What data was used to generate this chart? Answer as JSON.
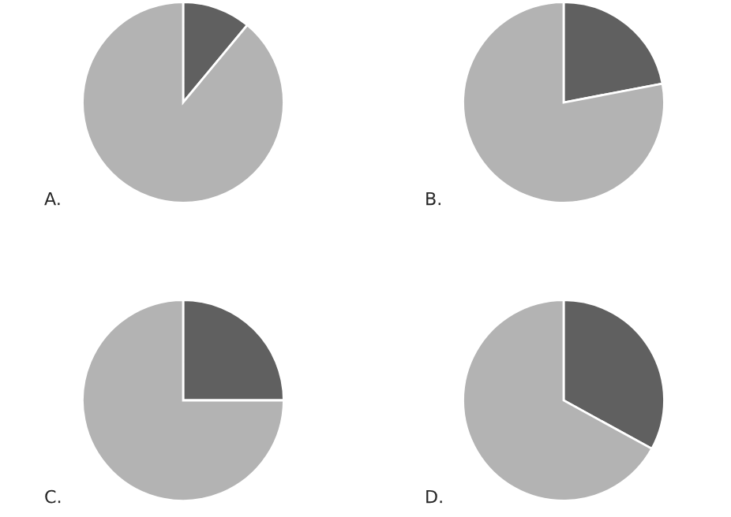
{
  "chart_data": [
    {
      "type": "pie",
      "title": "A.",
      "categories": [
        null,
        null
      ],
      "values": [
        11,
        89
      ],
      "colors": [
        "#606060",
        "#b3b3b3"
      ]
    },
    {
      "type": "pie",
      "title": "B.",
      "categories": [
        null,
        null
      ],
      "values": [
        22,
        78
      ],
      "colors": [
        "#606060",
        "#b3b3b3"
      ]
    },
    {
      "type": "pie",
      "title": "C.",
      "categories": [
        null,
        null
      ],
      "values": [
        25,
        75
      ],
      "colors": [
        "#606060",
        "#b3b3b3"
      ]
    },
    {
      "type": "pie",
      "title": "D.",
      "categories": [
        null,
        null
      ],
      "values": [
        33,
        67
      ],
      "colors": [
        "#606060",
        "#b3b3b3"
      ]
    }
  ]
}
